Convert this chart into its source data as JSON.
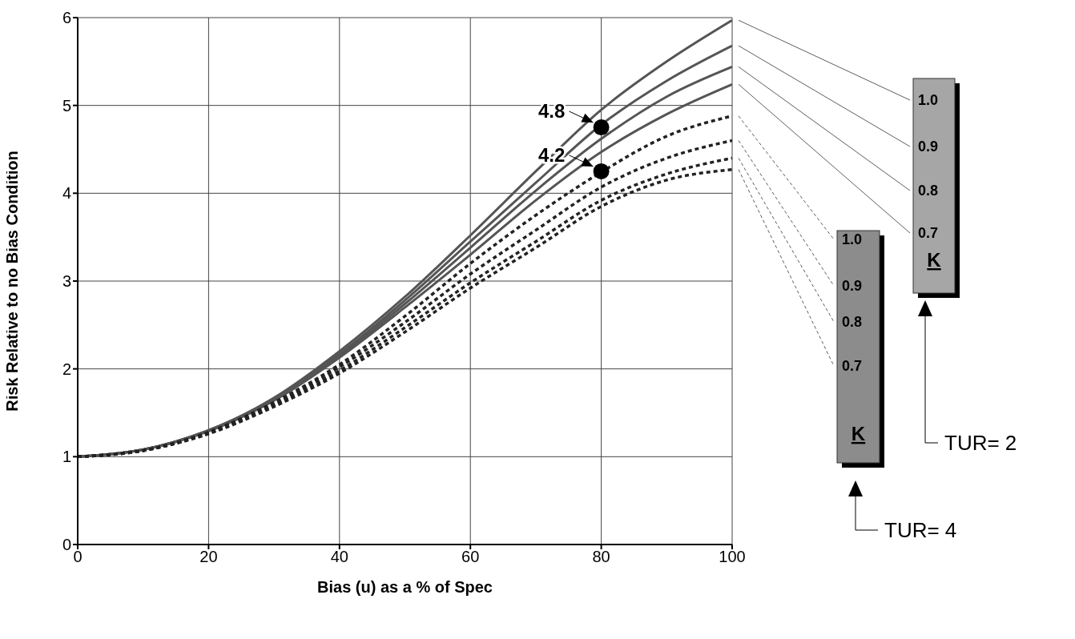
{
  "chart_data": {
    "type": "line",
    "xlabel": "Bias (u) as a % of Spec",
    "ylabel": "Risk Relative to no Bias Condition",
    "x": [
      0,
      10,
      20,
      30,
      40,
      50,
      60,
      70,
      80,
      90,
      100
    ],
    "series": [
      {
        "name": "1.0",
        "color": "#555555",
        "line_style": "solid",
        "values": [
          1,
          1.08,
          1.3,
          1.67,
          2.2,
          2.82,
          3.52,
          4.25,
          4.95,
          5.5,
          5.97
        ]
      },
      {
        "name": "0.9",
        "color": "#555555",
        "line_style": "solid",
        "values": [
          1,
          1.08,
          1.3,
          1.66,
          2.17,
          2.78,
          3.45,
          4.12,
          4.78,
          5.28,
          5.68
        ]
      },
      {
        "name": "0.8",
        "color": "#555555",
        "line_style": "solid",
        "values": [
          1,
          1.08,
          1.3,
          1.65,
          2.15,
          2.74,
          3.38,
          4.03,
          4.62,
          5.1,
          5.44
        ]
      },
      {
        "name": "0.7",
        "color": "#555555",
        "line_style": "solid",
        "values": [
          1,
          1.08,
          1.29,
          1.64,
          2.13,
          2.7,
          3.3,
          3.92,
          4.47,
          4.9,
          5.24
        ]
      },
      {
        "name": "1.0",
        "color": "#222222",
        "line_style": "dotted",
        "values": [
          1,
          1.07,
          1.28,
          1.62,
          2.05,
          2.6,
          3.2,
          3.75,
          4.24,
          4.65,
          4.88
        ]
      },
      {
        "name": "0.9",
        "color": "#222222",
        "line_style": "dotted",
        "values": [
          1,
          1.07,
          1.27,
          1.6,
          2.02,
          2.53,
          3.08,
          3.58,
          4.07,
          4.4,
          4.6
        ]
      },
      {
        "name": "0.8",
        "color": "#222222",
        "line_style": "dotted",
        "values": [
          1,
          1.07,
          1.27,
          1.59,
          1.98,
          2.47,
          2.98,
          3.45,
          3.92,
          4.22,
          4.4
        ]
      },
      {
        "name": "0.7",
        "color": "#222222",
        "line_style": "dotted",
        "values": [
          1,
          1.07,
          1.26,
          1.57,
          1.95,
          2.42,
          2.92,
          3.38,
          3.85,
          4.15,
          4.27
        ]
      },
      {
        "type": "scatter",
        "x": [
          80,
          80
        ],
        "color": "#000000",
        "values": [
          4.75,
          4.25
        ],
        "value_labels": [
          "4.8",
          "4.2"
        ]
      }
    ],
    "xlim": [
      0,
      100
    ],
    "xticks": [
      0,
      20,
      40,
      60,
      80,
      100
    ],
    "ylim": [
      0,
      6
    ],
    "yticks": [
      0,
      1,
      2,
      3,
      4,
      5,
      6
    ],
    "grid": true,
    "legend": "right",
    "annotations": [
      "K",
      "TUR= 2",
      "K",
      "TUR= 4"
    ]
  }
}
